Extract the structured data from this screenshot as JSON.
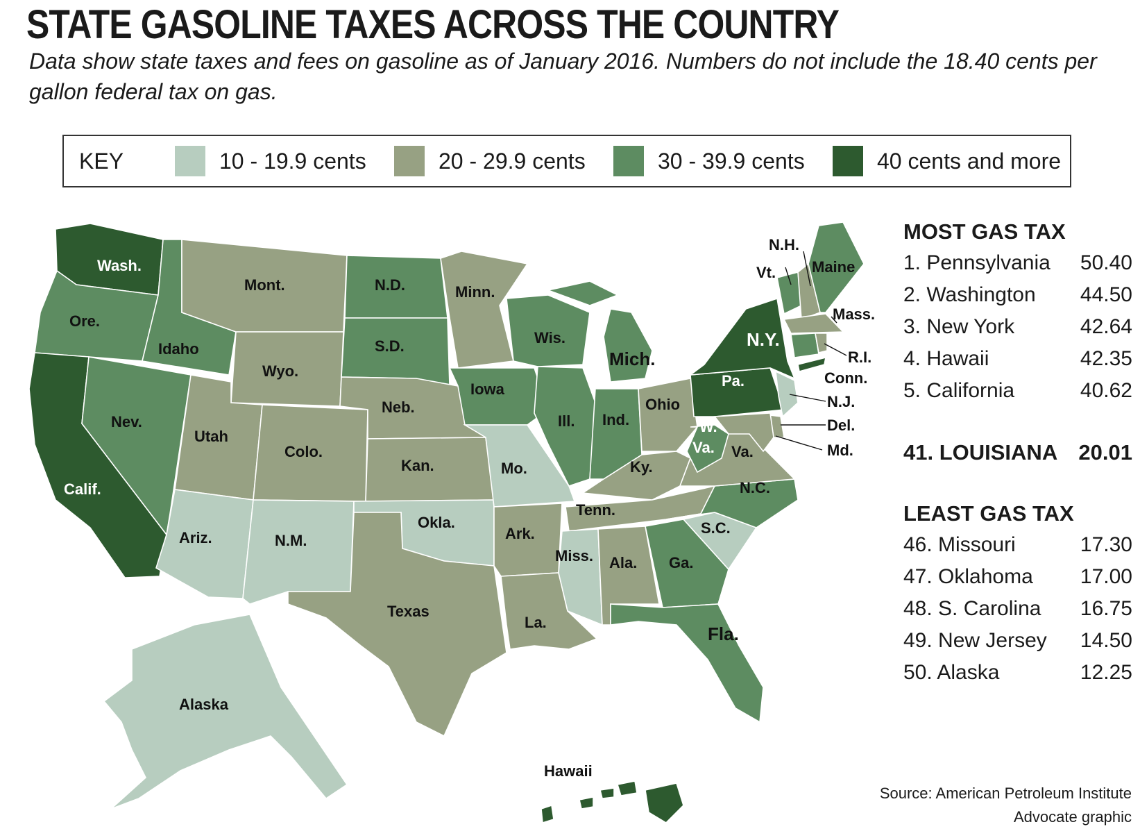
{
  "title": "STATE GASOLINE TAXES ACROSS THE COUNTRY",
  "subtitle": "Data show state taxes and fees on gasoline as of January 2016. Numbers do not include the 18.40 cents per gallon federal tax on gas.",
  "key": {
    "label": "KEY",
    "items": [
      {
        "text": "10 - 19.9 cents",
        "color": "#b7cdbf"
      },
      {
        "text": "20 - 29.9 cents",
        "color": "#97a183"
      },
      {
        "text": "30 - 39.9 cents",
        "color": "#5d8c61"
      },
      {
        "text": "40 cents and more",
        "color": "#2d5a2f"
      }
    ]
  },
  "states": {
    "wa": "Wash.",
    "or": "Ore.",
    "ca": "Calif.",
    "id": "Idaho",
    "nv": "Nev.",
    "mt": "Mont.",
    "wy": "Wyo.",
    "ut": "Utah",
    "az": "Ariz.",
    "co": "Colo.",
    "nm": "N.M.",
    "nd": "N.D.",
    "sd": "S.D.",
    "ne": "Neb.",
    "ks": "Kan.",
    "ok": "Okla.",
    "tx": "Texas",
    "mn": "Minn.",
    "ia": "Iowa",
    "mo": "Mo.",
    "ar": "Ark.",
    "la": "La.",
    "wi": "Wis.",
    "il": "Ill.",
    "mi": "Mich.",
    "in": "Ind.",
    "oh": "Ohio",
    "ky": "Ky.",
    "tn": "Tenn.",
    "ms": "Miss.",
    "al": "Ala.",
    "ga": "Ga.",
    "fl": "Fla.",
    "sc": "S.C.",
    "nc": "N.C.",
    "va": "Va.",
    "wv1": "W.",
    "wv2": "Va.",
    "pa": "Pa.",
    "ny": "N.Y.",
    "vt": "Vt.",
    "nh": "N.H.",
    "me": "Maine",
    "ma": "Mass.",
    "ri": "R.I.",
    "ct": "Conn.",
    "nj": "N.J.",
    "de": "Del.",
    "md": "Md.",
    "ak": "Alaska",
    "hi": "Hawaii"
  },
  "most": {
    "header": "MOST GAS TAX",
    "rows": [
      {
        "name": "1. Pennsylvania",
        "value": "50.40"
      },
      {
        "name": "2. Washington",
        "value": "44.50"
      },
      {
        "name": "3. New York",
        "value": "42.64"
      },
      {
        "name": "4. Hawaii",
        "value": "42.35"
      },
      {
        "name": "5. California",
        "value": "40.62"
      }
    ]
  },
  "louisiana": {
    "name": "41. LOUISIANA",
    "value": "20.01"
  },
  "least": {
    "header": "LEAST GAS TAX",
    "rows": [
      {
        "name": "46. Missouri",
        "value": "17.30"
      },
      {
        "name": "47. Oklahoma",
        "value": "17.00"
      },
      {
        "name": "48. S. Carolina",
        "value": "16.75"
      },
      {
        "name": "49. New Jersey",
        "value": "14.50"
      },
      {
        "name": "50. Alaska",
        "value": "12.25"
      }
    ]
  },
  "source": {
    "line1": "Source: American Petroleum Institute",
    "line2": "Advocate graphic"
  }
}
